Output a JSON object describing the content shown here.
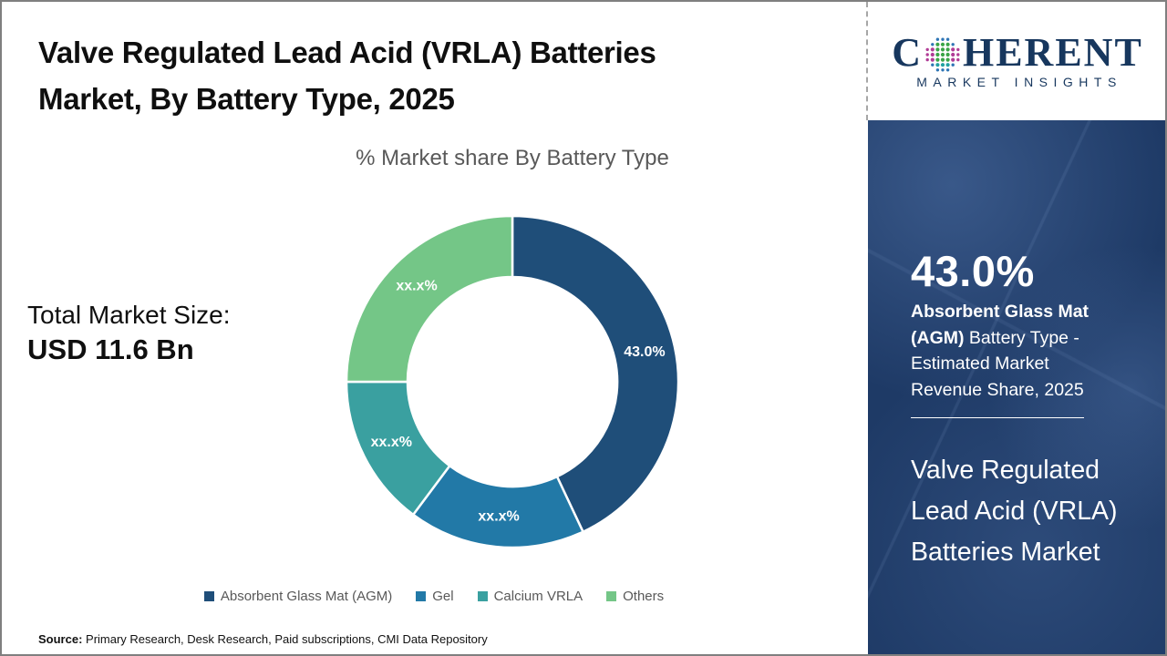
{
  "header": {
    "title_line1": "Valve Regulated Lead Acid (VRLA) Batteries",
    "title_line2": "Market, By Battery Type, 2025"
  },
  "logo": {
    "word_start": "C",
    "word_end": "HERENT",
    "subtitle": "MARKET INSIGHTS",
    "brand_color": "#17375E",
    "globe_dot_colors": [
      "#3BA547",
      "#2E75B5",
      "#B13C96",
      "#22A2A2"
    ]
  },
  "chart_data": {
    "type": "pie",
    "subtype": "donut",
    "title": "% Market share By Battery Type",
    "legend_position": "bottom",
    "inner_radius_ratio": 0.63,
    "start_angle_deg": 0,
    "direction": "clockwise",
    "segments": [
      {
        "label": "Absorbent Glass Mat (AGM)",
        "data_label": "43.0%",
        "value": 43.0,
        "color": "#1F4E79"
      },
      {
        "label": "Gel",
        "data_label": "xx.x%",
        "value": 17.2,
        "color": "#2279A7"
      },
      {
        "label": "Calcium VRLA",
        "data_label": "xx.x%",
        "value": 14.8,
        "color": "#3AA0A0"
      },
      {
        "label": "Others",
        "data_label": "xx.x%",
        "value": 25.0,
        "color": "#74C687"
      }
    ]
  },
  "total_market": {
    "label": "Total Market Size:",
    "value": "USD 11.6 Bn"
  },
  "sidebar": {
    "highlight_value": "43.0%",
    "highlight_bold": "Absorbent Glass Mat (AGM)",
    "highlight_rest": " Battery Type - Estimated Market Revenue Share, 2025",
    "report_title": "Valve Regulated Lead Acid (VRLA) Batteries Market",
    "background_color": "#1E3A66"
  },
  "footer": {
    "source_label": "Source:",
    "source_text": " Primary Research, Desk Research, Paid subscriptions, CMI Data Repository"
  }
}
